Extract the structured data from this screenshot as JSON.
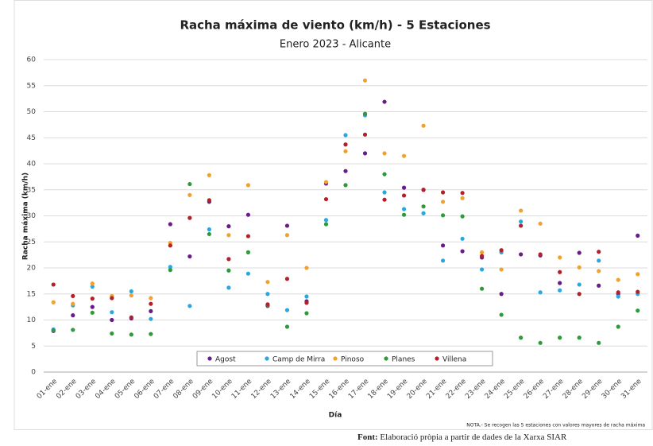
{
  "chart_data": {
    "type": "scatter",
    "title": "Racha máxima de viento (km/h) - 5 Estaciones",
    "subtitle": "Enero 2023 - Alicante",
    "x_label": "Día",
    "y_label": "Racha máxima (km/h)",
    "note": "NOTA.- Se recogen las 5 estaciones con valores mayores de racha máxima",
    "categories": [
      "01-ene",
      "02-ene",
      "03-ene",
      "04-ene",
      "05-ene",
      "06-ene",
      "07-ene",
      "08-ene",
      "09-ene",
      "10-ene",
      "11-ene",
      "12-ene",
      "13-ene",
      "14-ene",
      "15-ene",
      "16-ene",
      "17-ene",
      "18-ene",
      "19-ene",
      "20-ene",
      "21-ene",
      "22-ene",
      "23-ene",
      "24-ene",
      "25-ene",
      "26-ene",
      "27-ene",
      "28-ene",
      "29-ene",
      "30-ene",
      "31-ene"
    ],
    "ylim": [
      0,
      60
    ],
    "yticks": [
      0,
      5,
      10,
      15,
      20,
      25,
      30,
      35,
      40,
      45,
      50,
      55,
      60
    ],
    "grid": true,
    "series": [
      {
        "name": "Agost",
        "color": "#6a1b8a",
        "values": [
          7.9,
          10.9,
          12.5,
          10.0,
          10.3,
          11.7,
          28.4,
          22.2,
          32.7,
          28.0,
          30.2,
          12.7,
          28.1,
          13.6,
          36.2,
          38.6,
          42.0,
          51.9,
          35.4,
          35.0,
          24.3,
          23.2,
          22.0,
          15.0,
          22.6,
          22.4,
          17.1,
          22.9,
          16.6,
          15.0,
          26.2
        ]
      },
      {
        "name": "Camp de Mirra",
        "color": "#2aa7df",
        "values": [
          8.2,
          12.8,
          16.4,
          11.5,
          15.5,
          10.2,
          20.2,
          12.7,
          27.4,
          16.2,
          18.9,
          15.0,
          11.9,
          14.5,
          29.2,
          45.5,
          49.3,
          34.5,
          31.3,
          30.5,
          21.4,
          25.6,
          19.7,
          23.0,
          28.9,
          15.3,
          15.7,
          16.8,
          21.4,
          14.5,
          15.0
        ]
      },
      {
        "name": "Pinoso",
        "color": "#f0a22e",
        "values": [
          13.4,
          13.1,
          17.0,
          14.6,
          14.7,
          14.2,
          24.8,
          34.0,
          37.8,
          26.3,
          35.9,
          17.3,
          26.3,
          20.0,
          36.5,
          42.4,
          56.0,
          42.0,
          41.5,
          47.3,
          32.7,
          33.4,
          23.0,
          19.7,
          31.0,
          28.5,
          22.0,
          20.1,
          19.4,
          17.7,
          18.8
        ]
      },
      {
        "name": "Planes",
        "color": "#2e9a3a",
        "values": [
          8.0,
          8.1,
          11.4,
          7.4,
          7.2,
          7.3,
          19.6,
          36.1,
          26.5,
          19.5,
          23.0,
          12.8,
          8.7,
          11.3,
          28.4,
          35.9,
          49.6,
          38.0,
          30.2,
          31.8,
          30.1,
          29.9,
          16.0,
          11.0,
          6.6,
          5.6,
          6.6,
          6.6,
          5.6,
          8.7,
          11.8
        ]
      },
      {
        "name": "Villena",
        "color": "#b3202a",
        "values": [
          16.8,
          14.6,
          14.1,
          14.2,
          10.5,
          13.1,
          24.3,
          29.6,
          33.0,
          21.7,
          26.1,
          13.0,
          17.9,
          13.3,
          33.2,
          43.7,
          45.6,
          33.1,
          33.9,
          35.0,
          34.5,
          34.4,
          22.3,
          23.4,
          28.1,
          22.6,
          19.2,
          15.0,
          23.1,
          15.3,
          15.4
        ]
      }
    ]
  },
  "footer": {
    "label": "Font:",
    "text": "Elaboració pròpia a partir de dades de la Xarxa SIAR"
  }
}
